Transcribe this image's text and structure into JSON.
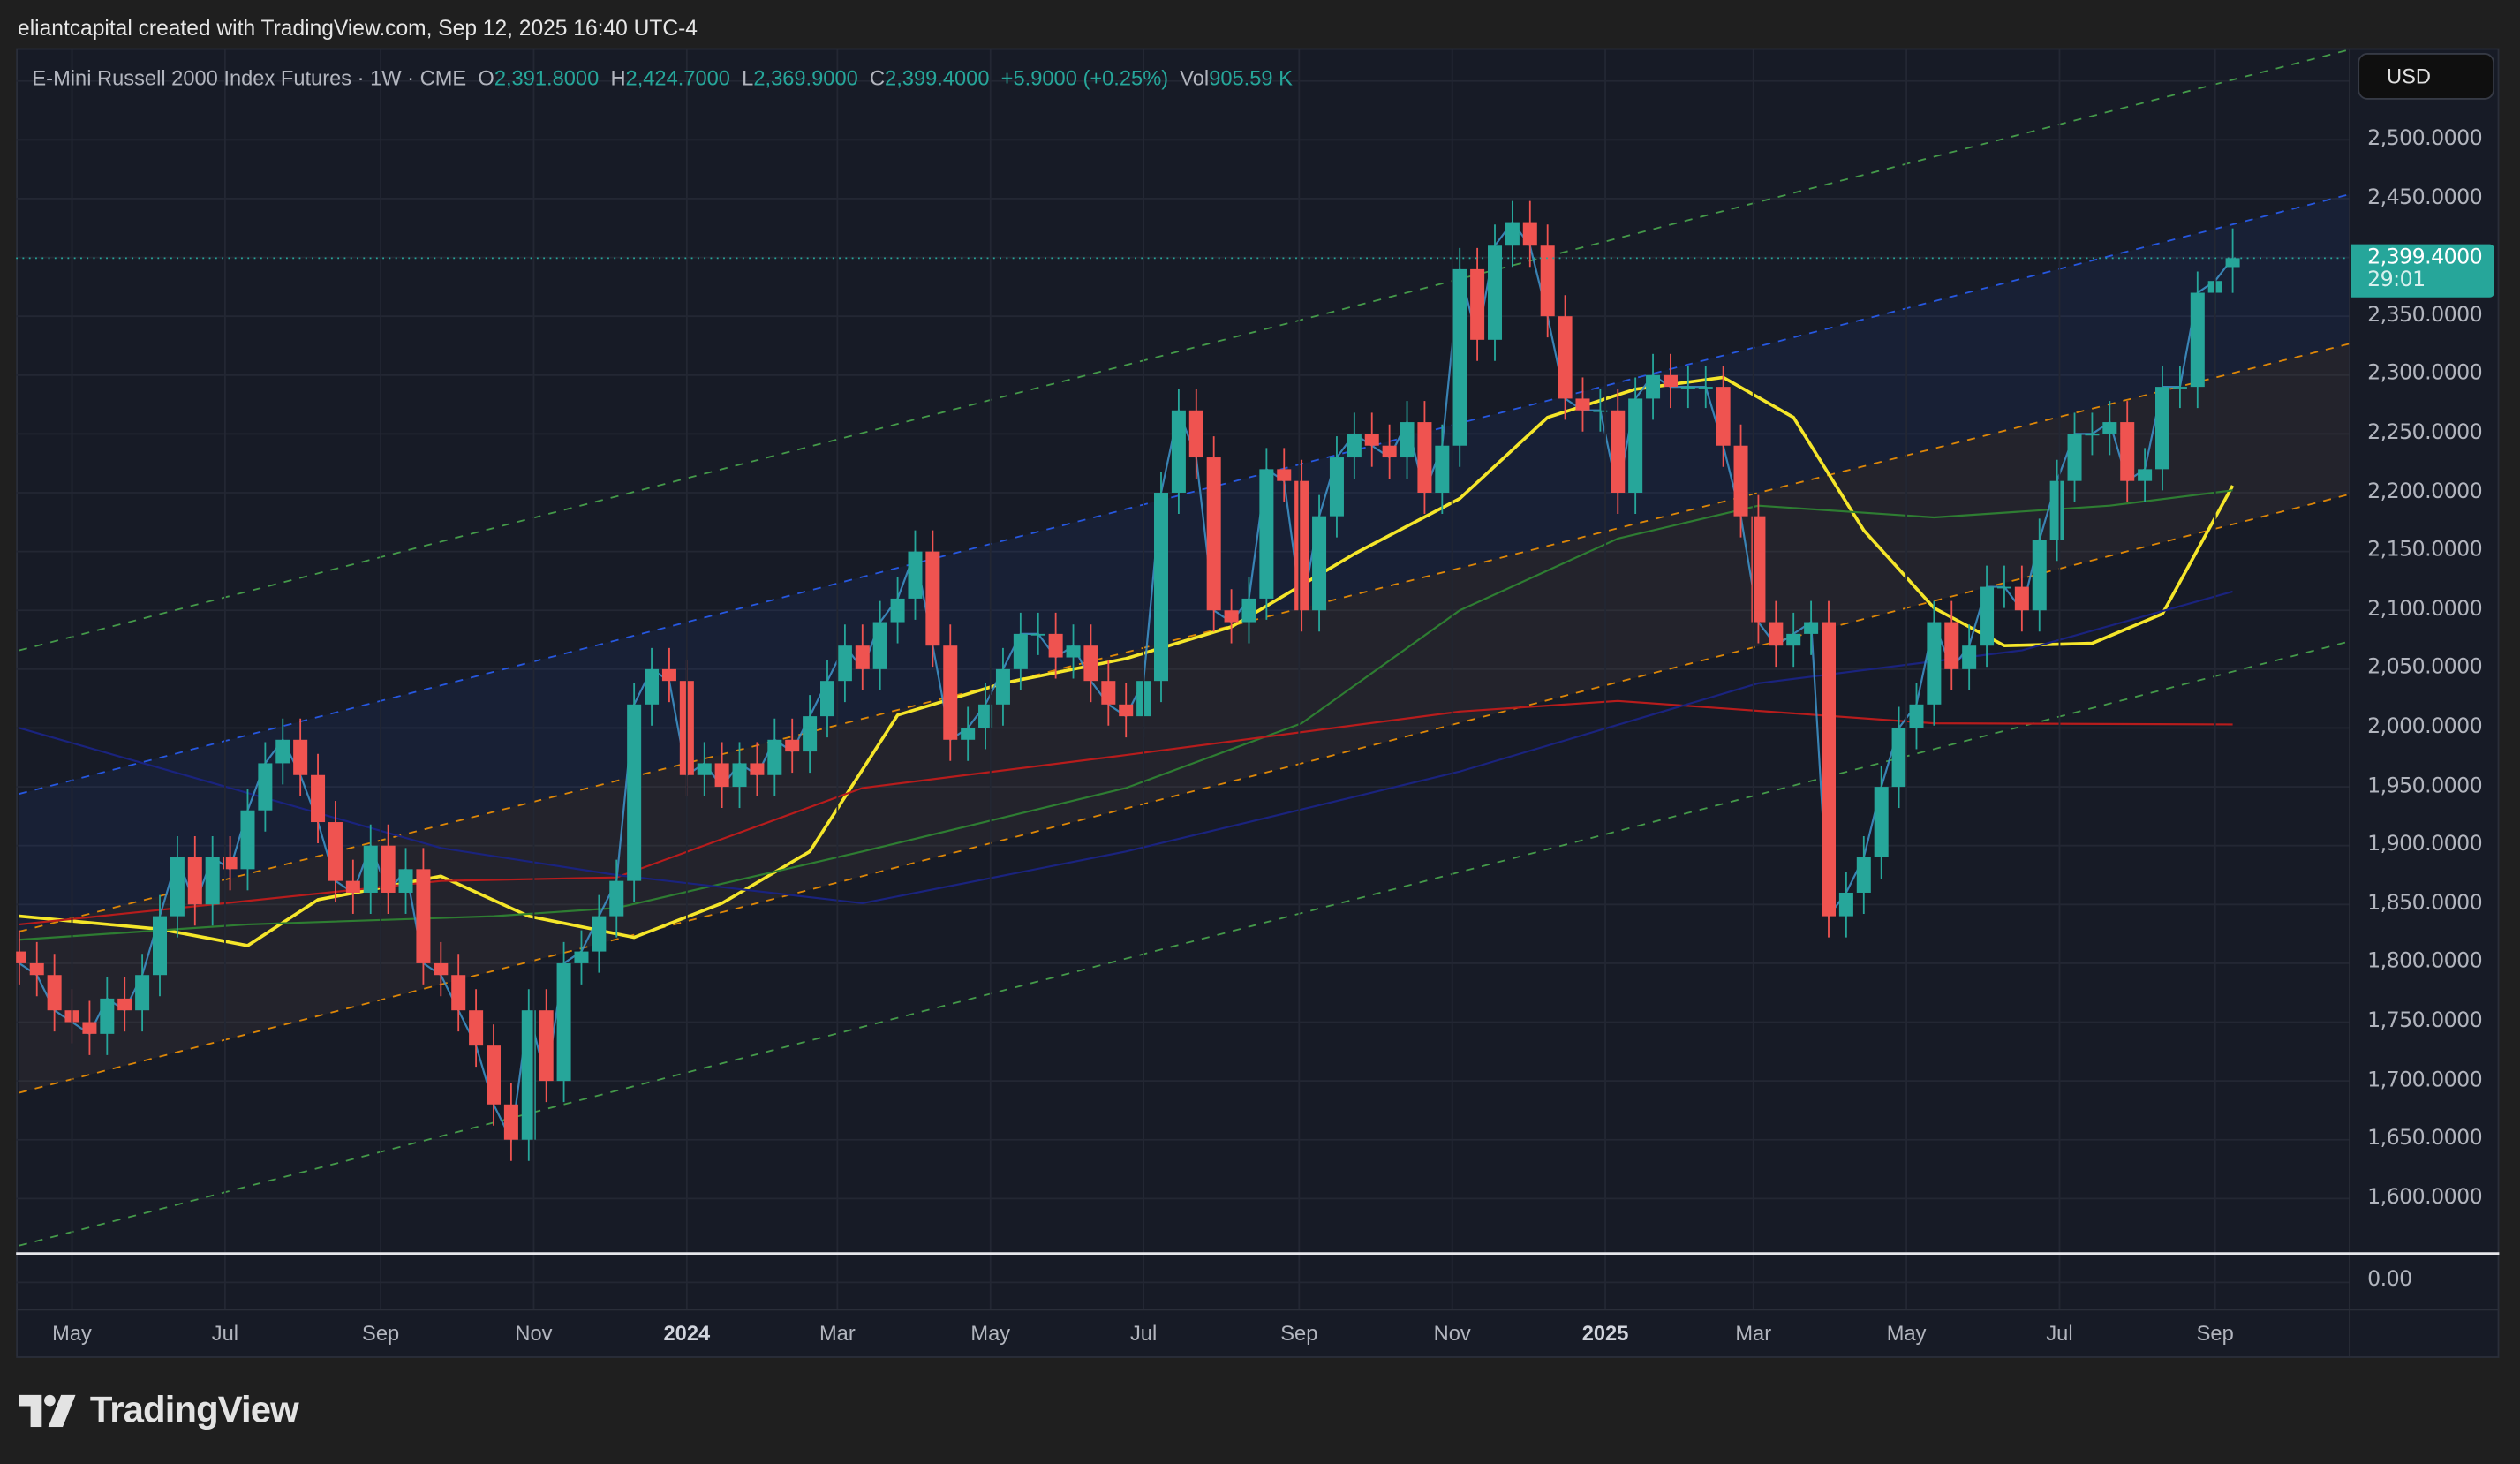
{
  "header": {
    "created_by": "eliantcapital created with TradingView.com, Sep 12, 2025 16:40 UTC-4"
  },
  "legend": {
    "symbol": "E-Mini Russell 2000 Index Futures · 1W · CME",
    "open_label": "O",
    "open": "2,391.8000",
    "high_label": "H",
    "high": "2,424.7000",
    "low_label": "L",
    "low": "2,369.9000",
    "close_label": "C",
    "close": "2,399.4000",
    "change": "+5.9000 (+0.25%)",
    "vol_label": "Vol",
    "vol": "905.59 K"
  },
  "price_axis": {
    "currency": "USD",
    "labels": [
      "2,500.0000",
      "2,450.0000",
      "2,350.0000",
      "2,300.0000",
      "2,250.0000",
      "2,200.0000",
      "2,150.0000",
      "2,100.0000",
      "2,050.0000",
      "2,000.0000",
      "1,950.0000",
      "1,900.0000",
      "1,850.0000",
      "1,800.0000",
      "1,750.0000",
      "1,700.0000",
      "1,650.0000",
      "1,600.0000"
    ],
    "current_price": "2,399.4000",
    "countdown": "29:01",
    "volume_label": "0.00"
  },
  "time_axis": [
    {
      "label": "May",
      "date": "2023-05-01",
      "year": false
    },
    {
      "label": "Jul",
      "date": "2023-07-01",
      "year": false
    },
    {
      "label": "Sep",
      "date": "2023-09-01",
      "year": false
    },
    {
      "label": "Nov",
      "date": "2023-11-01",
      "year": false
    },
    {
      "label": "2024",
      "date": "2024-01-01",
      "year": true
    },
    {
      "label": "Mar",
      "date": "2024-03-01",
      "year": false
    },
    {
      "label": "May",
      "date": "2024-05-01",
      "year": false
    },
    {
      "label": "Jul",
      "date": "2024-07-01",
      "year": false
    },
    {
      "label": "Sep",
      "date": "2024-09-01",
      "year": false
    },
    {
      "label": "Nov",
      "date": "2024-11-01",
      "year": false
    },
    {
      "label": "2025",
      "date": "2025-01-01",
      "year": true
    },
    {
      "label": "Mar",
      "date": "2025-03-01",
      "year": false
    },
    {
      "label": "May",
      "date": "2025-05-01",
      "year": false
    },
    {
      "label": "Jul",
      "date": "2025-07-01",
      "year": false
    },
    {
      "label": "Sep",
      "date": "2025-09-01",
      "year": false
    }
  ],
  "colors": {
    "up": "#26a69a",
    "down": "#ef5350",
    "ma_yellow": "#f5e62a",
    "ma_green": "#2e7d32",
    "ma_red": "#b71c1c",
    "ma_blue": "#1a237e",
    "close_line": "#3d8fc4",
    "channel_green": "#4caf50",
    "channel_blue": "#2962ff",
    "channel_orange": "#ff9800"
  },
  "brand": {
    "name": "TradingView"
  },
  "chart_data": {
    "type": "candlestick",
    "interval": "1W",
    "ylim": [
      1560,
      2570
    ],
    "last_bar": {
      "o": 2391.8,
      "h": 2424.7,
      "l": 2369.9,
      "c": 2399.4
    },
    "closes": [
      [
        "2023-04-10",
        1800
      ],
      [
        "2023-04-17",
        1790
      ],
      [
        "2023-04-24",
        1760
      ],
      [
        "2023-05-01",
        1750
      ],
      [
        "2023-05-08",
        1740
      ],
      [
        "2023-05-15",
        1770
      ],
      [
        "2023-05-22",
        1760
      ],
      [
        "2023-05-29",
        1790
      ],
      [
        "2023-06-05",
        1840
      ],
      [
        "2023-06-12",
        1890
      ],
      [
        "2023-06-19",
        1850
      ],
      [
        "2023-06-26",
        1890
      ],
      [
        "2023-07-03",
        1880
      ],
      [
        "2023-07-10",
        1930
      ],
      [
        "2023-07-17",
        1970
      ],
      [
        "2023-07-24",
        1990
      ],
      [
        "2023-07-31",
        1960
      ],
      [
        "2023-08-07",
        1920
      ],
      [
        "2023-08-14",
        1870
      ],
      [
        "2023-08-21",
        1860
      ],
      [
        "2023-08-28",
        1900
      ],
      [
        "2023-09-04",
        1860
      ],
      [
        "2023-09-11",
        1880
      ],
      [
        "2023-09-18",
        1800
      ],
      [
        "2023-09-25",
        1790
      ],
      [
        "2023-10-02",
        1760
      ],
      [
        "2023-10-09",
        1730
      ],
      [
        "2023-10-16",
        1680
      ],
      [
        "2023-10-23",
        1650
      ],
      [
        "2023-10-30",
        1760
      ],
      [
        "2023-11-06",
        1700
      ],
      [
        "2023-11-13",
        1800
      ],
      [
        "2023-11-20",
        1810
      ],
      [
        "2023-11-27",
        1840
      ],
      [
        "2023-12-04",
        1870
      ],
      [
        "2023-12-11",
        2020
      ],
      [
        "2023-12-18",
        2050
      ],
      [
        "2023-12-25",
        2040
      ],
      [
        "2024-01-01",
        1960
      ],
      [
        "2024-01-08",
        1970
      ],
      [
        "2024-01-15",
        1950
      ],
      [
        "2024-01-22",
        1970
      ],
      [
        "2024-01-29",
        1960
      ],
      [
        "2024-02-05",
        1990
      ],
      [
        "2024-02-12",
        1980
      ],
      [
        "2024-02-19",
        2010
      ],
      [
        "2024-02-26",
        2040
      ],
      [
        "2024-03-04",
        2070
      ],
      [
        "2024-03-11",
        2050
      ],
      [
        "2024-03-18",
        2090
      ],
      [
        "2024-03-25",
        2110
      ],
      [
        "2024-04-01",
        2150
      ],
      [
        "2024-04-08",
        2070
      ],
      [
        "2024-04-15",
        1990
      ],
      [
        "2024-04-22",
        2000
      ],
      [
        "2024-04-29",
        2020
      ],
      [
        "2024-05-06",
        2050
      ],
      [
        "2024-05-13",
        2080
      ],
      [
        "2024-05-20",
        2080
      ],
      [
        "2024-05-27",
        2060
      ],
      [
        "2024-06-03",
        2070
      ],
      [
        "2024-06-10",
        2040
      ],
      [
        "2024-06-17",
        2020
      ],
      [
        "2024-06-24",
        2010
      ],
      [
        "2024-07-01",
        2040
      ],
      [
        "2024-07-08",
        2200
      ],
      [
        "2024-07-15",
        2270
      ],
      [
        "2024-07-22",
        2230
      ],
      [
        "2024-07-29",
        2100
      ],
      [
        "2024-08-05",
        2090
      ],
      [
        "2024-08-12",
        2110
      ],
      [
        "2024-08-19",
        2220
      ],
      [
        "2024-08-26",
        2210
      ],
      [
        "2024-09-02",
        2100
      ],
      [
        "2024-09-09",
        2180
      ],
      [
        "2024-09-16",
        2230
      ],
      [
        "2024-09-23",
        2250
      ],
      [
        "2024-09-30",
        2240
      ],
      [
        "2024-10-07",
        2230
      ],
      [
        "2024-10-14",
        2260
      ],
      [
        "2024-10-21",
        2200
      ],
      [
        "2024-10-28",
        2240
      ],
      [
        "2024-11-04",
        2390
      ],
      [
        "2024-11-11",
        2330
      ],
      [
        "2024-11-18",
        2410
      ],
      [
        "2024-11-25",
        2430
      ],
      [
        "2024-12-02",
        2410
      ],
      [
        "2024-12-09",
        2350
      ],
      [
        "2024-12-16",
        2280
      ],
      [
        "2024-12-23",
        2270
      ],
      [
        "2024-12-30",
        2270
      ],
      [
        "2025-01-06",
        2200
      ],
      [
        "2025-01-13",
        2280
      ],
      [
        "2025-01-20",
        2300
      ],
      [
        "2025-01-27",
        2290
      ],
      [
        "2025-02-03",
        2290
      ],
      [
        "2025-02-10",
        2290
      ],
      [
        "2025-02-17",
        2240
      ],
      [
        "2025-02-24",
        2180
      ],
      [
        "2025-03-03",
        2090
      ],
      [
        "2025-03-10",
        2070
      ],
      [
        "2025-03-17",
        2080
      ],
      [
        "2025-03-24",
        2090
      ],
      [
        "2025-03-31",
        1840
      ],
      [
        "2025-04-07",
        1860
      ],
      [
        "2025-04-14",
        1890
      ],
      [
        "2025-04-21",
        1950
      ],
      [
        "2025-04-28",
        2000
      ],
      [
        "2025-05-05",
        2020
      ],
      [
        "2025-05-12",
        2090
      ],
      [
        "2025-05-19",
        2050
      ],
      [
        "2025-05-26",
        2070
      ],
      [
        "2025-06-02",
        2120
      ],
      [
        "2025-06-09",
        2120
      ],
      [
        "2025-06-16",
        2100
      ],
      [
        "2025-06-23",
        2160
      ],
      [
        "2025-06-30",
        2210
      ],
      [
        "2025-07-07",
        2250
      ],
      [
        "2025-07-14",
        2250
      ],
      [
        "2025-07-21",
        2260
      ],
      [
        "2025-07-28",
        2210
      ],
      [
        "2025-08-04",
        2220
      ],
      [
        "2025-08-11",
        2290
      ],
      [
        "2025-08-18",
        2290
      ],
      [
        "2025-08-25",
        2370
      ],
      [
        "2025-09-01",
        2380
      ],
      [
        "2025-09-08",
        2399.4
      ]
    ],
    "moving_averages": [
      {
        "color": "ma_yellow",
        "points": [
          [
            "2023-04-10",
            1840
          ],
          [
            "2023-06-05",
            1829
          ],
          [
            "2023-07-10",
            1815
          ],
          [
            "2023-08-07",
            1854
          ],
          [
            "2023-09-25",
            1874
          ],
          [
            "2023-10-30",
            1840
          ],
          [
            "2023-12-11",
            1822
          ],
          [
            "2024-01-15",
            1851
          ],
          [
            "2024-02-19",
            1895
          ],
          [
            "2024-03-25",
            2011
          ],
          [
            "2024-05-06",
            2038
          ],
          [
            "2024-06-24",
            2059
          ],
          [
            "2024-08-05",
            2086
          ],
          [
            "2024-09-23",
            2148
          ],
          [
            "2024-11-04",
            2195
          ],
          [
            "2024-12-09",
            2264
          ],
          [
            "2025-01-13",
            2288
          ],
          [
            "2025-02-17",
            2298
          ],
          [
            "2025-03-17",
            2264
          ],
          [
            "2025-04-14",
            2168
          ],
          [
            "2025-05-12",
            2102
          ],
          [
            "2025-06-09",
            2070
          ],
          [
            "2025-07-14",
            2072
          ],
          [
            "2025-08-11",
            2097
          ],
          [
            "2025-09-08",
            2206
          ]
        ]
      },
      {
        "color": "ma_green",
        "points": [
          [
            "2023-04-10",
            1820
          ],
          [
            "2023-07-10",
            1833
          ],
          [
            "2023-10-16",
            1840
          ],
          [
            "2023-12-04",
            1847
          ],
          [
            "2024-03-11",
            1895
          ],
          [
            "2024-06-24",
            1949
          ],
          [
            "2024-09-02",
            2004
          ],
          [
            "2024-11-04",
            2100
          ],
          [
            "2025-01-06",
            2161
          ],
          [
            "2025-03-03",
            2189
          ],
          [
            "2025-05-12",
            2179
          ],
          [
            "2025-07-21",
            2189
          ],
          [
            "2025-09-08",
            2202
          ]
        ]
      },
      {
        "color": "ma_red",
        "points": [
          [
            "2023-04-10",
            1833
          ],
          [
            "2023-09-25",
            1870
          ],
          [
            "2023-12-04",
            1873
          ],
          [
            "2024-03-11",
            1949
          ],
          [
            "2024-06-24",
            1977
          ],
          [
            "2024-11-04",
            2014
          ],
          [
            "2025-01-06",
            2023
          ],
          [
            "2025-05-12",
            2004
          ],
          [
            "2025-09-08",
            2003
          ]
        ]
      },
      {
        "color": "ma_blue",
        "points": [
          [
            "2023-04-10",
            2000
          ],
          [
            "2023-09-25",
            1898
          ],
          [
            "2023-12-04",
            1875
          ],
          [
            "2024-03-11",
            1851
          ],
          [
            "2024-06-24",
            1895
          ],
          [
            "2024-11-04",
            1963
          ],
          [
            "2025-03-03",
            2038
          ],
          [
            "2025-06-16",
            2066
          ],
          [
            "2025-09-08",
            2116
          ]
        ]
      }
    ],
    "channel": [
      {
        "color": "channel_green",
        "from": [
          "2023-04-10",
          2066
        ],
        "to": [
          "2025-10-27",
          2578
        ]
      },
      {
        "color": "channel_blue",
        "from": [
          "2023-04-10",
          1944
        ],
        "to": [
          "2025-10-27",
          2455
        ]
      },
      {
        "color": "channel_orange",
        "from": [
          "2023-04-10",
          1827
        ],
        "to": [
          "2025-10-27",
          2328
        ]
      },
      {
        "color": "channel_orange",
        "from": [
          "2023-04-10",
          1690
        ],
        "to": [
          "2025-10-27",
          2200
        ]
      },
      {
        "color": "channel_green",
        "from": [
          "2023-04-10",
          1560
        ],
        "to": [
          "2025-10-27",
          2075
        ]
      }
    ]
  }
}
